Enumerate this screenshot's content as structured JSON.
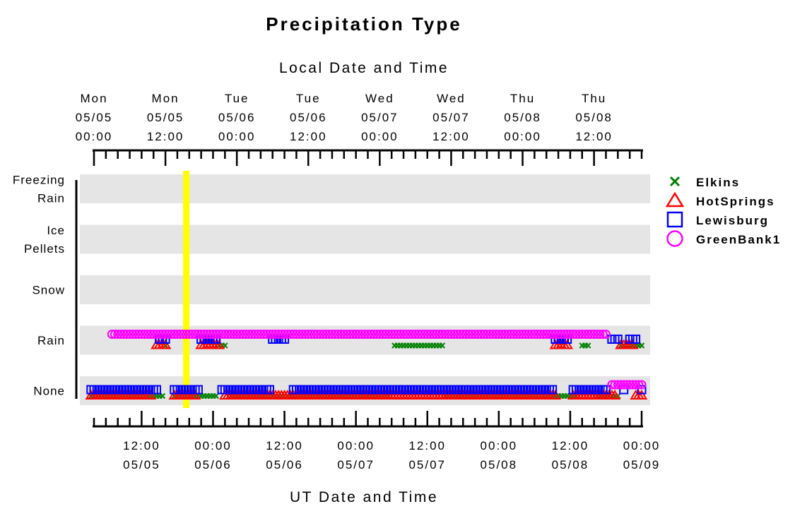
{
  "chart_data": {
    "type": "scatter",
    "title": "Precipitation Type",
    "top_axis": {
      "title": "Local Date and Time",
      "ticks": [
        {
          "hours": 0,
          "lines": [
            "Mon",
            "05/05",
            "00:00"
          ]
        },
        {
          "hours": 12,
          "lines": [
            "Mon",
            "05/05",
            "12:00"
          ]
        },
        {
          "hours": 24,
          "lines": [
            "Tue",
            "05/06",
            "00:00"
          ]
        },
        {
          "hours": 36,
          "lines": [
            "Tue",
            "05/06",
            "12:00"
          ]
        },
        {
          "hours": 48,
          "lines": [
            "Wed",
            "05/07",
            "00:00"
          ]
        },
        {
          "hours": 60,
          "lines": [
            "Wed",
            "05/07",
            "12:00"
          ]
        },
        {
          "hours": 72,
          "lines": [
            "Thu",
            "05/08",
            "00:00"
          ]
        },
        {
          "hours": 84,
          "lines": [
            "Thu",
            "05/08",
            "12:00"
          ]
        }
      ]
    },
    "bottom_axis": {
      "title": "UT Date and Time",
      "ticks": [
        {
          "hours": 8,
          "lines": [
            "12:00",
            "05/05"
          ]
        },
        {
          "hours": 20,
          "lines": [
            "00:00",
            "05/06"
          ]
        },
        {
          "hours": 32,
          "lines": [
            "12:00",
            "05/06"
          ]
        },
        {
          "hours": 44,
          "lines": [
            "00:00",
            "05/07"
          ]
        },
        {
          "hours": 56,
          "lines": [
            "12:00",
            "05/07"
          ]
        },
        {
          "hours": 68,
          "lines": [
            "00:00",
            "05/08"
          ]
        },
        {
          "hours": 80,
          "lines": [
            "12:00",
            "05/08"
          ]
        },
        {
          "hours": 92,
          "lines": [
            "00:00",
            "05/09"
          ]
        }
      ]
    },
    "xlim_hours": [
      0,
      92
    ],
    "categories": [
      {
        "lines": [
          "Freezing",
          "Rain"
        ]
      },
      {
        "lines": [
          "Ice",
          "Pellets"
        ]
      },
      {
        "lines": [
          "Snow"
        ]
      },
      {
        "lines": [
          "Rain"
        ]
      },
      {
        "lines": [
          "None"
        ]
      }
    ],
    "current_time_hours": 15.5,
    "current_time_color": "#ffff00",
    "band_color": "#e5e5e5",
    "series": [
      {
        "name": "Elkins",
        "marker": "x",
        "color": "#008000",
        "segments": [
          {
            "category": "None",
            "from": -0.5,
            "to": 11.5
          },
          {
            "category": "Rain",
            "from": 12.0,
            "to": 12.0
          },
          {
            "category": "None",
            "from": 13.5,
            "to": 20.5
          },
          {
            "category": "Rain",
            "from": 21.0,
            "to": 22.0
          },
          {
            "category": "None",
            "from": 23.0,
            "to": 49.5
          },
          {
            "category": "Rain",
            "from": 50.5,
            "to": 58.5
          },
          {
            "category": "None",
            "from": 59.0,
            "to": 81.0
          },
          {
            "category": "Rain",
            "from": 82.0,
            "to": 83.0
          },
          {
            "category": "None",
            "from": 84.5,
            "to": 88.0
          },
          {
            "category": "Rain",
            "from": 88.5,
            "to": 92.0
          }
        ]
      },
      {
        "name": "HotSprings",
        "marker": "triangle",
        "color": "#ff0000",
        "segments": [
          {
            "category": "None",
            "from": -0.5,
            "to": 9.5
          },
          {
            "category": "Rain",
            "from": 10.5,
            "to": 12.0
          },
          {
            "category": "None",
            "from": 13.5,
            "to": 17.0
          },
          {
            "category": "Rain",
            "from": 18.0,
            "to": 21.0
          },
          {
            "category": "None",
            "from": 22.0,
            "to": 77.5
          },
          {
            "category": "Rain",
            "from": 77.5,
            "to": 79.5
          },
          {
            "category": "None",
            "from": 80.5,
            "to": 87.5
          },
          {
            "category": "Rain",
            "from": 88.5,
            "to": 90.5
          },
          {
            "category": "None",
            "from": 91.0,
            "to": 92.0
          }
        ]
      },
      {
        "name": "Lewisburg",
        "marker": "square",
        "color": "#0000ff",
        "segments": [
          {
            "category": "None",
            "from": -0.5,
            "to": 10.5
          },
          {
            "category": "Rain",
            "from": 11.0,
            "to": 12.0
          },
          {
            "category": "None",
            "from": 13.5,
            "to": 17.5
          },
          {
            "category": "Rain",
            "from": 18.0,
            "to": 20.5
          },
          {
            "category": "None",
            "from": 21.5,
            "to": 29.5
          },
          {
            "category": "Rain",
            "from": 30.0,
            "to": 32.0
          },
          {
            "category": "None",
            "from": 33.5,
            "to": 77.0
          },
          {
            "category": "Rain",
            "from": 77.5,
            "to": 79.5
          },
          {
            "category": "None",
            "from": 80.5,
            "to": 86.0
          },
          {
            "category": "Rain",
            "from": 87.0,
            "to": 88.0
          },
          {
            "category": "None",
            "from": 89.0,
            "to": 89.0
          },
          {
            "category": "Rain",
            "from": 90.0,
            "to": 91.0
          },
          {
            "category": "None",
            "from": 92.0,
            "to": 92.0
          }
        ]
      },
      {
        "name": "GreenBank1",
        "marker": "circle",
        "color": "#ff00ff",
        "segments": [
          {
            "category": "Rain",
            "from": 3.0,
            "to": 86.0
          },
          {
            "category": "None",
            "from": 87.0,
            "to": 92.0
          }
        ]
      }
    ]
  }
}
